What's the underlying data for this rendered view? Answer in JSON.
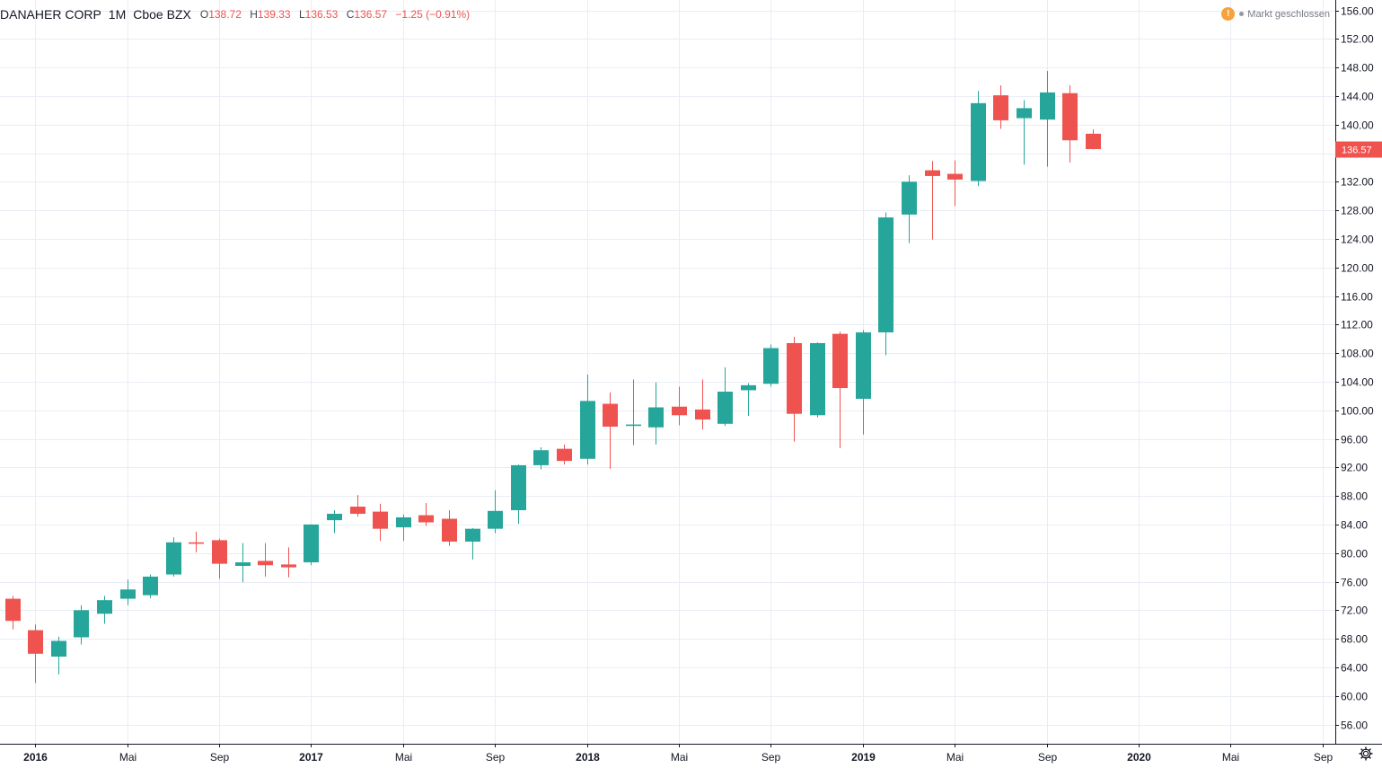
{
  "header": {
    "symbol": "DANAHER CORP",
    "interval": "1M",
    "exchange": "Cboe BZX",
    "open_key": "O",
    "open": "138.72",
    "high_key": "H",
    "high": "139.33",
    "low_key": "L",
    "low": "136.53",
    "close_key": "C",
    "close": "136.57",
    "change": "−1.25 (−0.91%)"
  },
  "status": {
    "warning_icon": "!",
    "market_text": "Markt geschlossen"
  },
  "colors": {
    "up": "#26a69a",
    "down": "#ef5350",
    "grid": "#e9edf3",
    "axis_border": "#131722",
    "last_price": "#ef5350"
  },
  "icons": {
    "settings": "gear-icon",
    "warning": "warning-icon"
  },
  "chart_data": {
    "type": "candlestick",
    "interval": "1M",
    "ylim": [
      52,
      158
    ],
    "y_ticks": [
      56,
      60,
      64,
      68,
      72,
      76,
      80,
      84,
      88,
      92,
      96,
      100,
      104,
      108,
      112,
      116,
      120,
      124,
      128,
      132,
      136,
      140,
      144,
      148,
      152,
      156
    ],
    "y_tick_labels": [
      "56.00",
      "60.00",
      "64.00",
      "68.00",
      "72.00",
      "76.00",
      "80.00",
      "84.00",
      "88.00",
      "92.00",
      "96.00",
      "100.00",
      "104.00",
      "108.00",
      "112.00",
      "116.00",
      "120.00",
      "124.00",
      "128.00",
      "132.00",
      "136.00",
      "140.00",
      "144.00",
      "148.00",
      "152.00",
      "156.00"
    ],
    "x_start": "2015-12",
    "x_ticks": [
      {
        "month_index": 1,
        "label": "2016",
        "bold": true
      },
      {
        "month_index": 5,
        "label": "Mai",
        "bold": false
      },
      {
        "month_index": 9,
        "label": "Sep",
        "bold": false
      },
      {
        "month_index": 13,
        "label": "2017",
        "bold": true
      },
      {
        "month_index": 17,
        "label": "Mai",
        "bold": false
      },
      {
        "month_index": 21,
        "label": "Sep",
        "bold": false
      },
      {
        "month_index": 25,
        "label": "2018",
        "bold": true
      },
      {
        "month_index": 29,
        "label": "Mai",
        "bold": false
      },
      {
        "month_index": 33,
        "label": "Sep",
        "bold": false
      },
      {
        "month_index": 37,
        "label": "2019",
        "bold": true
      },
      {
        "month_index": 41,
        "label": "Mai",
        "bold": false
      },
      {
        "month_index": 45,
        "label": "Sep",
        "bold": false
      },
      {
        "month_index": 49,
        "label": "2020",
        "bold": true
      },
      {
        "month_index": 53,
        "label": "Mai",
        "bold": false
      },
      {
        "month_index": 57,
        "label": "Sep",
        "bold": false
      }
    ],
    "candles": [
      {
        "date": "2015-12",
        "o": 73.6,
        "h": 74.0,
        "l": 69.3,
        "c": 70.5
      },
      {
        "date": "2016-01",
        "o": 69.2,
        "h": 70.0,
        "l": 61.8,
        "c": 65.9
      },
      {
        "date": "2016-02",
        "o": 65.5,
        "h": 68.3,
        "l": 63.0,
        "c": 67.7
      },
      {
        "date": "2016-03",
        "o": 68.2,
        "h": 72.7,
        "l": 67.2,
        "c": 72.0
      },
      {
        "date": "2016-04",
        "o": 71.5,
        "h": 74.0,
        "l": 70.1,
        "c": 73.4
      },
      {
        "date": "2016-05",
        "o": 73.6,
        "h": 76.3,
        "l": 72.7,
        "c": 74.9
      },
      {
        "date": "2016-06",
        "o": 74.1,
        "h": 77.0,
        "l": 73.7,
        "c": 76.7
      },
      {
        "date": "2016-07",
        "o": 77.0,
        "h": 82.2,
        "l": 76.7,
        "c": 81.5
      },
      {
        "date": "2016-08",
        "o": 81.5,
        "h": 83.0,
        "l": 80.1,
        "c": 81.3
      },
      {
        "date": "2016-09",
        "o": 81.8,
        "h": 82.0,
        "l": 76.4,
        "c": 78.5
      },
      {
        "date": "2016-10",
        "o": 78.2,
        "h": 81.4,
        "l": 75.9,
        "c": 78.7
      },
      {
        "date": "2016-11",
        "o": 78.9,
        "h": 81.4,
        "l": 76.7,
        "c": 78.3
      },
      {
        "date": "2016-12",
        "o": 78.4,
        "h": 80.8,
        "l": 76.6,
        "c": 78.0
      },
      {
        "date": "2017-01",
        "o": 78.7,
        "h": 84.0,
        "l": 78.3,
        "c": 84.0
      },
      {
        "date": "2017-02",
        "o": 84.6,
        "h": 86.0,
        "l": 82.8,
        "c": 85.5
      },
      {
        "date": "2017-03",
        "o": 86.5,
        "h": 88.1,
        "l": 85.1,
        "c": 85.5
      },
      {
        "date": "2017-04",
        "o": 85.8,
        "h": 86.9,
        "l": 81.7,
        "c": 83.4
      },
      {
        "date": "2017-05",
        "o": 83.6,
        "h": 85.4,
        "l": 81.7,
        "c": 85.0
      },
      {
        "date": "2017-06",
        "o": 85.3,
        "h": 87.0,
        "l": 83.8,
        "c": 84.3
      },
      {
        "date": "2017-07",
        "o": 84.8,
        "h": 86.0,
        "l": 81.0,
        "c": 81.6
      },
      {
        "date": "2017-08",
        "o": 81.6,
        "h": 83.5,
        "l": 79.1,
        "c": 83.4
      },
      {
        "date": "2017-09",
        "o": 83.4,
        "h": 88.8,
        "l": 82.8,
        "c": 85.9
      },
      {
        "date": "2017-10",
        "o": 86.0,
        "h": 92.4,
        "l": 84.1,
        "c": 92.3
      },
      {
        "date": "2017-11",
        "o": 92.3,
        "h": 94.8,
        "l": 91.7,
        "c": 94.4
      },
      {
        "date": "2017-12",
        "o": 94.6,
        "h": 95.2,
        "l": 92.4,
        "c": 92.9
      },
      {
        "date": "2018-01",
        "o": 93.2,
        "h": 105.0,
        "l": 92.4,
        "c": 101.3
      },
      {
        "date": "2018-02",
        "o": 100.9,
        "h": 102.5,
        "l": 91.8,
        "c": 97.7
      },
      {
        "date": "2018-03",
        "o": 97.8,
        "h": 104.3,
        "l": 95.1,
        "c": 98.0
      },
      {
        "date": "2018-04",
        "o": 97.6,
        "h": 103.9,
        "l": 95.2,
        "c": 100.4
      },
      {
        "date": "2018-05",
        "o": 100.5,
        "h": 103.3,
        "l": 97.9,
        "c": 99.3
      },
      {
        "date": "2018-06",
        "o": 100.1,
        "h": 104.3,
        "l": 97.3,
        "c": 98.7
      },
      {
        "date": "2018-07",
        "o": 98.1,
        "h": 106.0,
        "l": 97.8,
        "c": 102.6
      },
      {
        "date": "2018-08",
        "o": 102.8,
        "h": 103.8,
        "l": 99.2,
        "c": 103.5
      },
      {
        "date": "2018-09",
        "o": 103.7,
        "h": 109.2,
        "l": 103.3,
        "c": 108.7
      },
      {
        "date": "2018-10",
        "o": 109.4,
        "h": 110.3,
        "l": 95.6,
        "c": 99.5
      },
      {
        "date": "2018-11",
        "o": 99.3,
        "h": 109.5,
        "l": 99.0,
        "c": 109.4
      },
      {
        "date": "2018-12",
        "o": 110.7,
        "h": 111.0,
        "l": 94.7,
        "c": 103.1
      },
      {
        "date": "2019-01",
        "o": 101.6,
        "h": 111.2,
        "l": 96.6,
        "c": 110.9
      },
      {
        "date": "2019-02",
        "o": 110.9,
        "h": 127.7,
        "l": 107.7,
        "c": 127.0
      },
      {
        "date": "2019-03",
        "o": 127.4,
        "h": 132.9,
        "l": 123.4,
        "c": 132.0
      },
      {
        "date": "2019-04",
        "o": 133.6,
        "h": 134.9,
        "l": 123.9,
        "c": 132.8
      },
      {
        "date": "2019-05",
        "o": 133.1,
        "h": 135.0,
        "l": 128.6,
        "c": 132.3
      },
      {
        "date": "2019-06",
        "o": 132.1,
        "h": 144.7,
        "l": 131.4,
        "c": 143.0
      },
      {
        "date": "2019-07",
        "o": 144.1,
        "h": 145.5,
        "l": 139.4,
        "c": 140.6
      },
      {
        "date": "2019-08",
        "o": 140.9,
        "h": 143.4,
        "l": 134.4,
        "c": 142.3
      },
      {
        "date": "2019-09",
        "o": 140.7,
        "h": 147.5,
        "l": 134.1,
        "c": 144.5
      },
      {
        "date": "2019-10",
        "o": 144.4,
        "h": 145.5,
        "l": 134.7,
        "c": 137.8
      },
      {
        "date": "2019-11",
        "o": 138.72,
        "h": 139.33,
        "l": 136.53,
        "c": 136.57
      }
    ],
    "last_price": 136.57,
    "last_price_label": "136.57"
  }
}
